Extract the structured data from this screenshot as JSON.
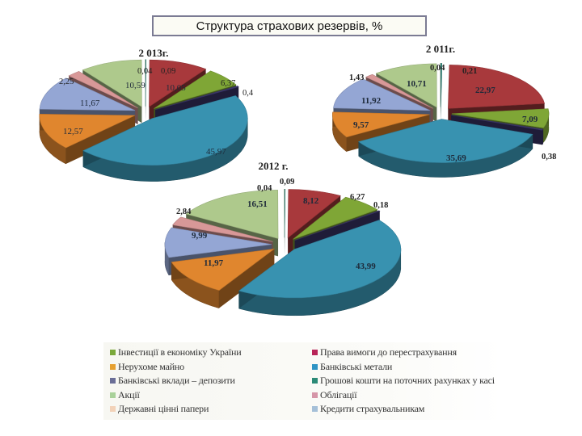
{
  "header": {
    "title": "Структура страхових резервів, %"
  },
  "categories": {
    "invest": {
      "label": "Інвестиції в економіку України",
      "color": "#7fa636"
    },
    "claims": {
      "label": "Права вимоги до перестрахування",
      "color": "#a8393c"
    },
    "realty": {
      "label": "Нерухоме майно",
      "color": "#e0862e"
    },
    "metals": {
      "label": "Банківські метали",
      "color": "#3892b0"
    },
    "deposits": {
      "label": "Банківські вклади – депозити",
      "color": "#3e3870"
    },
    "cash": {
      "label": "Грошові кошти на поточних рахунках у касі",
      "color": "#2e8a7e"
    },
    "shares": {
      "label": "Акції",
      "color": "#aec98c"
    },
    "bonds": {
      "label": "Облігації",
      "color": "#d89898"
    },
    "gov": {
      "label": "Державні цінні папери",
      "color": "#f0c9a8"
    },
    "loans": {
      "label": "Кредити страхувальникам",
      "color": "#94a6d4"
    }
  },
  "legend": {
    "left": [
      {
        "label": "Інвестиції в економіку України",
        "color": "#7aa83a"
      },
      {
        "label": "Нерухоме майно",
        "color": "#e6a030"
      },
      {
        "label": "Банківські вклади – депозити",
        "color": "#6a6e96"
      },
      {
        "label": "Акції",
        "color": "#a9d19a"
      },
      {
        "label": "Державні цінні папери",
        "color": "#f2d2b8"
      }
    ],
    "right": [
      {
        "label": "Права вимоги до перестрахування",
        "color": "#b82458"
      },
      {
        "label": "Банківські метали",
        "color": "#2f94c4"
      },
      {
        "label": "Грошові кошти на поточних рахунках у касі",
        "color": "#2b8a77"
      },
      {
        "label": "Облігації",
        "color": "#d696a8"
      },
      {
        "label": "Кредити страхувальникам",
        "color": "#a5c0d8"
      }
    ]
  },
  "chart_data": [
    {
      "type": "pie",
      "title": "2 013г.",
      "slices": [
        {
          "category": "cash",
          "value": 0.09,
          "label": "0,09"
        },
        {
          "category": "claims",
          "value": 10.05,
          "label": "10,05"
        },
        {
          "category": "invest",
          "value": 6.37,
          "label": "6,37"
        },
        {
          "category": "deposits",
          "value": 0.4,
          "label": "0,4"
        },
        {
          "category": "metals",
          "value": 45.97,
          "label": "45,97"
        },
        {
          "category": "realty",
          "value": 12.57,
          "label": "12,57"
        },
        {
          "category": "loans",
          "value": 11.67,
          "label": "11,67"
        },
        {
          "category": "bonds",
          "value": 2.25,
          "label": "2,25"
        },
        {
          "category": "shares",
          "value": 10.59,
          "label": "10,59"
        },
        {
          "category": "gov",
          "value": 0.04,
          "label": "0,04"
        }
      ]
    },
    {
      "type": "pie",
      "title": "2 011г.",
      "slices": [
        {
          "category": "cash",
          "value": 0.21,
          "label": "0,21"
        },
        {
          "category": "claims",
          "value": 22.97,
          "label": "22,97"
        },
        {
          "category": "invest",
          "value": 7.09,
          "label": "7,09"
        },
        {
          "category": "deposits",
          "value": 0.38,
          "label": "0,38"
        },
        {
          "category": "metals",
          "value": 35.69,
          "label": "35,69"
        },
        {
          "category": "realty",
          "value": 9.57,
          "label": "9,57"
        },
        {
          "category": "loans",
          "value": 11.92,
          "label": "11,92"
        },
        {
          "category": "bonds",
          "value": 1.43,
          "label": "1,43"
        },
        {
          "category": "shares",
          "value": 10.71,
          "label": "10,71"
        },
        {
          "category": "gov",
          "value": 0.04,
          "label": "0,04"
        }
      ]
    },
    {
      "type": "pie",
      "title": "2012 г.",
      "slices": [
        {
          "category": "cash",
          "value": 0.09,
          "label": "0,09"
        },
        {
          "category": "claims",
          "value": 8.12,
          "label": "8,12"
        },
        {
          "category": "invest",
          "value": 6.27,
          "label": "6,27"
        },
        {
          "category": "deposits",
          "value": 0.18,
          "label": "0,18"
        },
        {
          "category": "metals",
          "value": 43.99,
          "label": "43,99"
        },
        {
          "category": "realty",
          "value": 11.97,
          "label": "11,97"
        },
        {
          "category": "loans",
          "value": 9.99,
          "label": "9,99"
        },
        {
          "category": "bonds",
          "value": 2.84,
          "label": "2,84"
        },
        {
          "category": "shares",
          "value": 16.51,
          "label": "16,51"
        },
        {
          "category": "gov",
          "value": 0.04,
          "label": "0,04"
        }
      ]
    }
  ]
}
